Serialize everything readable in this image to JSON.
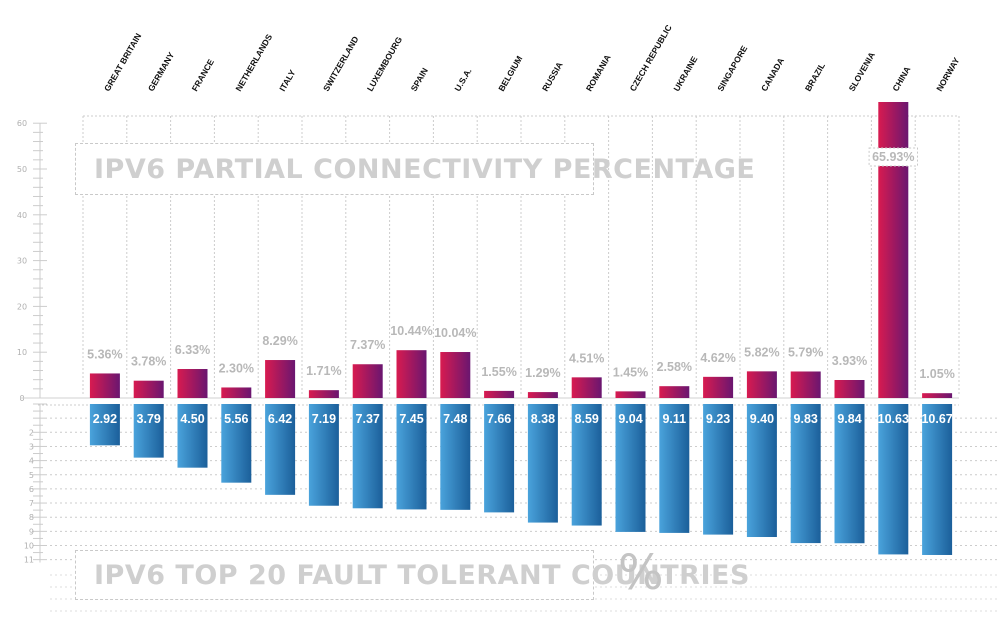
{
  "chart_data": [
    {
      "type": "bar",
      "title": "IPV6 PARTIAL CONNECTIVITY PERCENTAGE",
      "categories": [
        "GREAT BRITAIN",
        "GERMANY",
        "FRANCE",
        "NETHERLANDS",
        "ITALY",
        "SWITZERLAND",
        "LUXEMBOURG",
        "SPAIN",
        "U.S.A.",
        "BELGIUM",
        "RUSSIA",
        "ROMANIA",
        "CZECH REPUBLIC",
        "UKRAINE",
        "SINGAPORE",
        "CANADA",
        "BRAZIL",
        "SLOVENIA",
        "CHINA",
        "NORWAY"
      ],
      "values": [
        5.36,
        3.78,
        6.33,
        2.3,
        8.29,
        1.71,
        7.37,
        10.44,
        10.04,
        1.55,
        1.29,
        4.51,
        1.45,
        2.58,
        4.62,
        5.82,
        5.79,
        3.93,
        65.93,
        1.05
      ],
      "data_labels": [
        "5.36%",
        "3.78%",
        "6.33%",
        "2.30%",
        "8.29%",
        "1.71%",
        "7.37%",
        "10.44%",
        "10.04%",
        "1.55%",
        "1.29%",
        "4.51%",
        "1.45%",
        "2.58%",
        "4.62%",
        "5.82%",
        "5.79%",
        "3.93%",
        "65.93%",
        "1.05%"
      ],
      "yticks": [
        0,
        10,
        20,
        30,
        40,
        50,
        60
      ],
      "ytick_labels": [
        "0",
        "10",
        "20",
        "30",
        "40",
        "50",
        "60"
      ],
      "ylim": [
        0,
        60
      ],
      "colors": {
        "bar_start": "#d81b50",
        "bar_end": "#6a1670"
      }
    },
    {
      "type": "bar",
      "title": "IPV6 TOP 20 FAULT TOLERANT COUNTRIES",
      "unit": "%",
      "categories": [
        "GREAT BRITAIN",
        "GERMANY",
        "FRANCE",
        "NETHERLANDS",
        "ITALY",
        "SWITZERLAND",
        "LUXEMBOURG",
        "SPAIN",
        "U.S.A.",
        "BELGIUM",
        "RUSSIA",
        "ROMANIA",
        "CZECH REPUBLIC",
        "UKRAINE",
        "SINGAPORE",
        "CANADA",
        "BRAZIL",
        "SLOVENIA",
        "CHINA",
        "NORWAY"
      ],
      "values": [
        2.92,
        3.79,
        4.5,
        5.56,
        6.42,
        7.19,
        7.37,
        7.45,
        7.48,
        7.66,
        8.38,
        8.59,
        9.04,
        9.11,
        9.23,
        9.4,
        9.83,
        9.84,
        10.63,
        10.67
      ],
      "data_labels": [
        "2.92",
        "3.79",
        "4.50",
        "5.56",
        "6.42",
        "7.19",
        "7.37",
        "7.45",
        "7.48",
        "7.66",
        "8.38",
        "8.59",
        "9.04",
        "9.11",
        "9.23",
        "9.40",
        "9.83",
        "9.84",
        "10.63",
        "10.67"
      ],
      "yticks": [
        1,
        2,
        3,
        4,
        5,
        6,
        7,
        8,
        9,
        10,
        11
      ],
      "ytick_labels": [
        "",
        "2",
        "3",
        "4",
        "5",
        "6",
        "7",
        "8",
        "9",
        "10",
        "11"
      ],
      "ylim": [
        0,
        11
      ],
      "inverted": true,
      "colors": {
        "bar_start": "#4aa3dc",
        "bar_end": "#1b5f9a"
      }
    }
  ],
  "colors": {
    "axis_text": "#b0b0b0",
    "grid": "#cccccc",
    "label_text": "#b8b8b8",
    "title_text": "#cfcfcf"
  }
}
